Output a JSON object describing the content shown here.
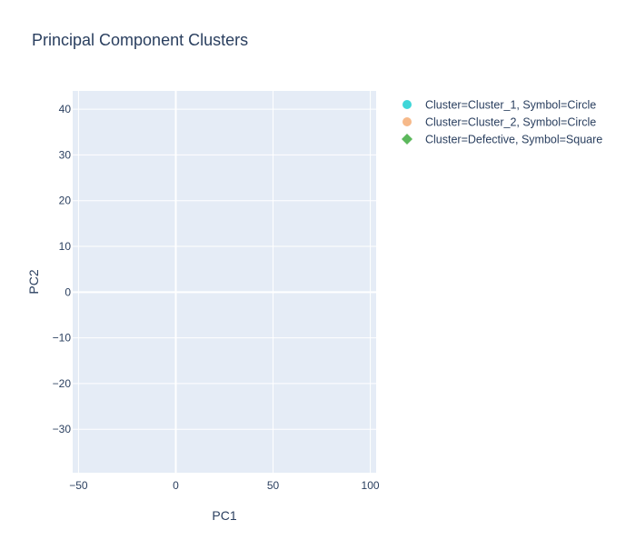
{
  "chart_data": {
    "type": "scatter",
    "title": "Principal Component Clusters",
    "xlabel": "PC1",
    "ylabel": "PC2",
    "xlim": [
      -53,
      103
    ],
    "ylim": [
      -39.5,
      44
    ],
    "x_ticks": [
      -50,
      0,
      50,
      100
    ],
    "y_ticks": [
      -30,
      -20,
      -10,
      0,
      10,
      20,
      30,
      40
    ],
    "x_tick_labels": [
      "−50",
      "0",
      "50",
      "100"
    ],
    "y_tick_labels": [
      "−30",
      "−20",
      "−10",
      "0",
      "10",
      "20",
      "30",
      "40"
    ],
    "grid": true,
    "legend_position": "right",
    "series": [
      {
        "name": "Cluster=Cluster_1, Symbol=Circle",
        "symbol": "circle",
        "color": "#3fd6d8",
        "points": []
      },
      {
        "name": "Cluster=Cluster_2, Symbol=Circle",
        "symbol": "circle",
        "color": "#f6b98a",
        "points": []
      },
      {
        "name": "Cluster=Defective, Symbol=Square",
        "symbol": "diamond",
        "color": "#5cb85c",
        "points": []
      }
    ]
  },
  "colors": {
    "plot_background": "#e5ecf6",
    "grid": "#ffffff",
    "text": "#2a3f5f"
  }
}
